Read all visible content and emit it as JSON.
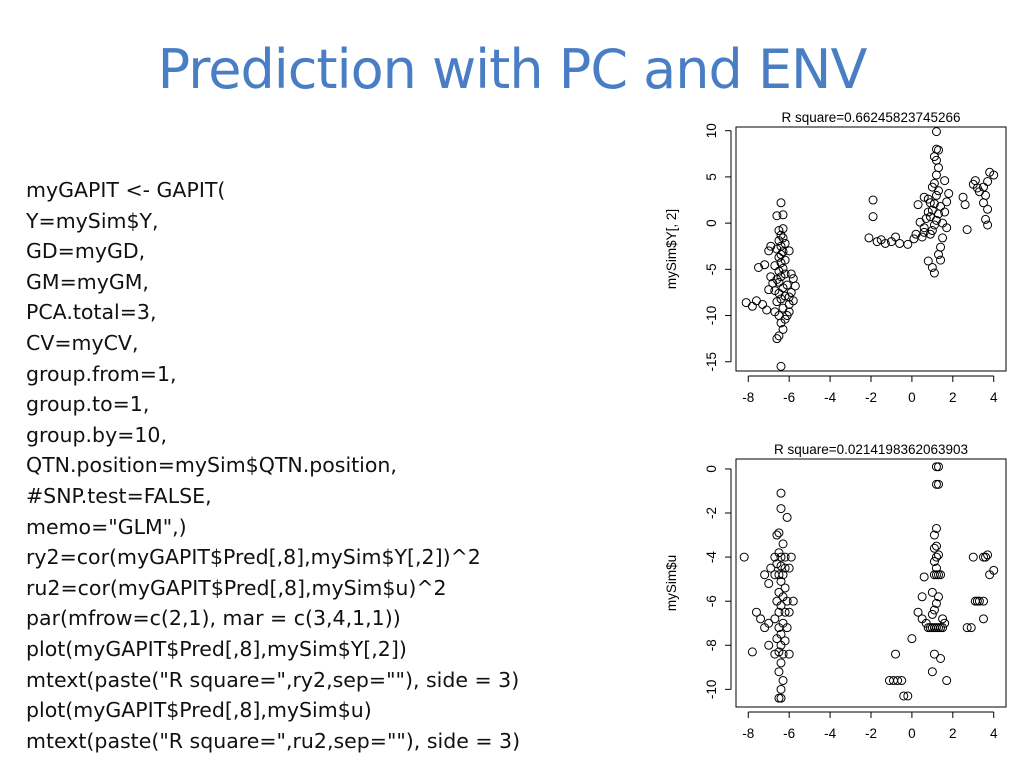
{
  "slide": {
    "title": "Prediction with PC and ENV"
  },
  "code": {
    "lines": [
      "myGAPIT <- GAPIT(",
      "Y=mySim$Y,",
      "GD=myGD,",
      "GM=myGM,",
      "PCA.total=3,",
      "CV=myCV,",
      "group.from=1,",
      "group.to=1,",
      "group.by=10,",
      "QTN.position=mySim$QTN.position,",
      "#SNP.test=FALSE,",
      "memo=\"GLM\",)",
      "ry2=cor(myGAPIT$Pred[,8],mySim$Y[,2])^2",
      "ru2=cor(myGAPIT$Pred[,8],mySim$u)^2",
      "par(mfrow=c(2,1), mar = c(3,4,1,1))",
      "plot(myGAPIT$Pred[,8],mySim$Y[,2])",
      "mtext(paste(\"R square=\",ry2,sep=\"\"), side = 3)",
      "plot(myGAPIT$Pred[,8],mySim$u)",
      "mtext(paste(\"R square=\",ru2,sep=\"\"), side = 3)"
    ]
  },
  "chart_data": [
    {
      "type": "scatter",
      "title": "R square=0.66245823745266",
      "xlabel": "",
      "ylabel": "mySim$Y[, 2]",
      "xlim": [
        -8.6,
        4.6
      ],
      "ylim": [
        -16,
        10.4
      ],
      "x_ticks": [
        "-8",
        "-6",
        "-4",
        "-2",
        "0",
        "2",
        "4"
      ],
      "y_ticks": [
        "-15",
        "-10",
        "-5",
        "0",
        "5",
        "10"
      ],
      "grid": false,
      "points": [
        [
          -6.4,
          -15.5
        ],
        [
          -6.3,
          -11.5
        ],
        [
          -6.5,
          -12.2
        ],
        [
          -6.6,
          -12.5
        ],
        [
          -6.4,
          -10.8
        ],
        [
          -6.2,
          -10.4
        ],
        [
          -6.5,
          -10.0
        ],
        [
          -6.7,
          -9.6
        ],
        [
          -6.3,
          -9.2
        ],
        [
          -6.0,
          -8.8
        ],
        [
          -6.6,
          -8.5
        ],
        [
          -6.4,
          -8.2
        ],
        [
          -6.2,
          -7.9
        ],
        [
          -6.5,
          -7.6
        ],
        [
          -6.7,
          -7.3
        ],
        [
          -6.3,
          -7.0
        ],
        [
          -6.1,
          -6.7
        ],
        [
          -6.5,
          -6.4
        ],
        [
          -6.6,
          -6.1
        ],
        [
          -6.4,
          -5.8
        ],
        [
          -6.2,
          -5.5
        ],
        [
          -6.5,
          -5.2
        ],
        [
          -6.3,
          -4.9
        ],
        [
          -6.7,
          -4.6
        ],
        [
          -6.4,
          -4.3
        ],
        [
          -6.2,
          -4.0
        ],
        [
          -6.5,
          -3.7
        ],
        [
          -6.4,
          -3.4
        ],
        [
          -6.3,
          -3.1
        ],
        [
          -6.6,
          -2.8
        ],
        [
          -6.4,
          -2.5
        ],
        [
          -6.2,
          -2.2
        ],
        [
          -6.5,
          -1.9
        ],
        [
          -6.3,
          -1.6
        ],
        [
          -6.4,
          -1.3
        ],
        [
          -6.5,
          -0.8
        ],
        [
          -6.3,
          -0.6
        ],
        [
          -6.6,
          0.8
        ],
        [
          -6.3,
          0.9
        ],
        [
          -6.4,
          2.2
        ],
        [
          -6.9,
          -2.5
        ],
        [
          -6.0,
          -3.0
        ],
        [
          -5.9,
          -5.5
        ],
        [
          -5.8,
          -6.0
        ],
        [
          -5.9,
          -7.5
        ],
        [
          -5.7,
          -6.8
        ],
        [
          -6.0,
          -8.0
        ],
        [
          -6.8,
          -6.5
        ],
        [
          -6.9,
          -5.8
        ],
        [
          -7.0,
          -7.2
        ],
        [
          -7.2,
          -4.5
        ],
        [
          -7.0,
          -3.0
        ],
        [
          -7.5,
          -4.8
        ],
        [
          -7.3,
          -8.8
        ],
        [
          -8.1,
          -8.6
        ],
        [
          -7.8,
          -9.0
        ],
        [
          -7.6,
          -8.4
        ],
        [
          -7.1,
          -9.4
        ],
        [
          -6.1,
          -10.0
        ],
        [
          -6.0,
          -9.6
        ],
        [
          -5.8,
          -8.4
        ],
        [
          -2.1,
          -1.6
        ],
        [
          -1.7,
          -2.0
        ],
        [
          -1.3,
          -2.2
        ],
        [
          -1.0,
          -2.0
        ],
        [
          -0.8,
          -1.5
        ],
        [
          -0.6,
          -2.2
        ],
        [
          -1.9,
          2.5
        ],
        [
          -1.9,
          0.7
        ],
        [
          -1.5,
          -1.8
        ],
        [
          -0.2,
          -2.3
        ],
        [
          0.1,
          -1.7
        ],
        [
          0.2,
          -1.2
        ],
        [
          0.4,
          0.1
        ],
        [
          0.3,
          2.0
        ],
        [
          0.6,
          -0.5
        ],
        [
          0.7,
          0.5
        ],
        [
          0.8,
          1.2
        ],
        [
          0.9,
          2.2
        ],
        [
          0.6,
          2.8
        ],
        [
          0.5,
          -1.5
        ],
        [
          0.9,
          -1.2
        ],
        [
          1.0,
          -0.8
        ],
        [
          1.1,
          -0.2
        ],
        [
          1.2,
          0.3
        ],
        [
          0.9,
          0.7
        ],
        [
          1.3,
          1.0
        ],
        [
          1.0,
          1.4
        ],
        [
          1.4,
          1.8
        ],
        [
          1.1,
          2.1
        ],
        [
          0.8,
          2.6
        ],
        [
          1.2,
          3.0
        ],
        [
          1.3,
          3.5
        ],
        [
          1.0,
          3.9
        ],
        [
          1.1,
          4.3
        ],
        [
          1.2,
          5.2
        ],
        [
          1.3,
          6.0
        ],
        [
          1.2,
          6.8
        ],
        [
          1.1,
          7.2
        ],
        [
          1.3,
          7.9
        ],
        [
          1.2,
          8.0
        ],
        [
          1.2,
          9.9
        ],
        [
          1.5,
          0.0
        ],
        [
          1.6,
          1.2
        ],
        [
          1.7,
          2.3
        ],
        [
          1.7,
          -0.5
        ],
        [
          1.5,
          -1.6
        ],
        [
          1.4,
          -2.6
        ],
        [
          1.3,
          -3.4
        ],
        [
          1.4,
          -4.0
        ],
        [
          1.0,
          -4.8
        ],
        [
          1.1,
          -5.4
        ],
        [
          0.8,
          -4.1
        ],
        [
          0.6,
          -1.0
        ],
        [
          1.8,
          3.2
        ],
        [
          1.6,
          4.6
        ],
        [
          2.5,
          2.8
        ],
        [
          2.6,
          2.0
        ],
        [
          2.7,
          -0.7
        ],
        [
          3.0,
          4.2
        ],
        [
          3.1,
          4.6
        ],
        [
          3.2,
          3.8
        ],
        [
          3.3,
          3.4
        ],
        [
          3.5,
          3.9
        ],
        [
          3.6,
          3.0
        ],
        [
          3.7,
          4.5
        ],
        [
          3.8,
          5.5
        ],
        [
          4.0,
          5.2
        ],
        [
          3.5,
          2.2
        ],
        [
          3.7,
          1.5
        ],
        [
          3.6,
          0.4
        ],
        [
          3.7,
          -0.2
        ]
      ]
    },
    {
      "type": "scatter",
      "title": "R square=0.0214198362063903",
      "xlabel": "",
      "ylabel": "mySim$u",
      "xlim": [
        -8.6,
        4.6
      ],
      "ylim": [
        -10.8,
        0.45
      ],
      "x_ticks": [
        "-8",
        "-6",
        "-4",
        "-2",
        "0",
        "2",
        "4"
      ],
      "y_ticks": [
        "-10",
        "-8",
        "-6",
        "-4",
        "-2",
        "0"
      ],
      "grid": false,
      "points": [
        [
          -6.4,
          -1.1
        ],
        [
          -6.4,
          -1.8
        ],
        [
          -6.1,
          -2.2
        ],
        [
          -6.5,
          -2.9
        ],
        [
          -6.6,
          -3.0
        ],
        [
          -6.3,
          -3.4
        ],
        [
          -6.5,
          -3.8
        ],
        [
          -6.7,
          -4.0
        ],
        [
          -6.4,
          -4.0
        ],
        [
          -6.2,
          -4.0
        ],
        [
          -6.6,
          -4.3
        ],
        [
          -6.4,
          -4.4
        ],
        [
          -6.2,
          -4.5
        ],
        [
          -6.0,
          -4.5
        ],
        [
          -6.5,
          -4.8
        ],
        [
          -6.3,
          -4.8
        ],
        [
          -6.7,
          -4.8
        ],
        [
          -6.4,
          -5.1
        ],
        [
          -6.2,
          -5.4
        ],
        [
          -6.5,
          -5.6
        ],
        [
          -6.3,
          -5.8
        ],
        [
          -6.6,
          -6.0
        ],
        [
          -6.1,
          -6.0
        ],
        [
          -6.4,
          -6.2
        ],
        [
          -6.2,
          -6.5
        ],
        [
          -6.5,
          -6.5
        ],
        [
          -6.7,
          -6.8
        ],
        [
          -6.3,
          -7.0
        ],
        [
          -6.5,
          -7.2
        ],
        [
          -6.1,
          -7.2
        ],
        [
          -6.4,
          -7.5
        ],
        [
          -6.6,
          -7.7
        ],
        [
          -6.2,
          -7.8
        ],
        [
          -6.4,
          -8.0
        ],
        [
          -6.5,
          -8.3
        ],
        [
          -6.3,
          -8.4
        ],
        [
          -6.7,
          -8.4
        ],
        [
          -6.4,
          -8.8
        ],
        [
          -6.5,
          -9.2
        ],
        [
          -6.3,
          -9.6
        ],
        [
          -6.4,
          -10.0
        ],
        [
          -6.5,
          -10.4
        ],
        [
          -6.4,
          -10.4
        ],
        [
          -7.0,
          -7.0
        ],
        [
          -7.2,
          -7.2
        ],
        [
          -7.4,
          -6.8
        ],
        [
          -7.6,
          -6.5
        ],
        [
          -7.8,
          -8.3
        ],
        [
          -8.2,
          -4.0
        ],
        [
          -7.0,
          -5.2
        ],
        [
          -7.2,
          -4.8
        ],
        [
          -6.9,
          -4.5
        ],
        [
          -5.9,
          -4.0
        ],
        [
          -6.0,
          -6.5
        ],
        [
          -5.8,
          -6.0
        ],
        [
          -6.0,
          -8.4
        ],
        [
          -7.0,
          -8.0
        ],
        [
          -1.1,
          -9.6
        ],
        [
          -0.9,
          -9.6
        ],
        [
          -0.7,
          -9.6
        ],
        [
          -0.5,
          -9.6
        ],
        [
          -0.4,
          -10.3
        ],
        [
          -0.2,
          -10.3
        ],
        [
          -0.8,
          -8.4
        ],
        [
          0.0,
          -7.7
        ],
        [
          0.3,
          -6.5
        ],
        [
          0.5,
          -6.8
        ],
        [
          0.5,
          -5.8
        ],
        [
          0.6,
          -4.9
        ],
        [
          0.7,
          -7.0
        ],
        [
          0.8,
          -7.2
        ],
        [
          0.9,
          -7.2
        ],
        [
          1.0,
          -7.2
        ],
        [
          1.1,
          -7.2
        ],
        [
          1.2,
          -7.2
        ],
        [
          1.3,
          -7.2
        ],
        [
          1.4,
          -7.2
        ],
        [
          1.5,
          -7.2
        ],
        [
          1.0,
          -6.6
        ],
        [
          1.1,
          -6.4
        ],
        [
          1.2,
          -6.1
        ],
        [
          1.3,
          -5.8
        ],
        [
          1.0,
          -5.6
        ],
        [
          1.1,
          -4.8
        ],
        [
          1.2,
          -4.8
        ],
        [
          1.3,
          -4.8
        ],
        [
          1.4,
          -4.8
        ],
        [
          1.2,
          -4.5
        ],
        [
          1.1,
          -4.2
        ],
        [
          1.2,
          -4.0
        ],
        [
          1.3,
          -3.9
        ],
        [
          1.1,
          -3.6
        ],
        [
          1.2,
          -3.5
        ],
        [
          1.1,
          -3.0
        ],
        [
          1.2,
          -2.7
        ],
        [
          1.2,
          -0.7
        ],
        [
          1.3,
          -0.7
        ],
        [
          1.2,
          0.1
        ],
        [
          1.3,
          0.1
        ],
        [
          1.5,
          -6.8
        ],
        [
          1.6,
          -7.0
        ],
        [
          1.7,
          -9.6
        ],
        [
          1.4,
          -8.6
        ],
        [
          1.0,
          -9.2
        ],
        [
          1.1,
          -8.4
        ],
        [
          2.7,
          -7.2
        ],
        [
          2.9,
          -7.2
        ],
        [
          3.1,
          -6.0
        ],
        [
          3.2,
          -6.0
        ],
        [
          3.3,
          -6.0
        ],
        [
          3.5,
          -6.0
        ],
        [
          3.5,
          -6.8
        ],
        [
          3.0,
          -4.0
        ],
        [
          3.5,
          -4.0
        ],
        [
          3.6,
          -4.0
        ],
        [
          3.7,
          -3.9
        ],
        [
          3.8,
          -4.8
        ],
        [
          4.0,
          -4.6
        ]
      ]
    }
  ]
}
